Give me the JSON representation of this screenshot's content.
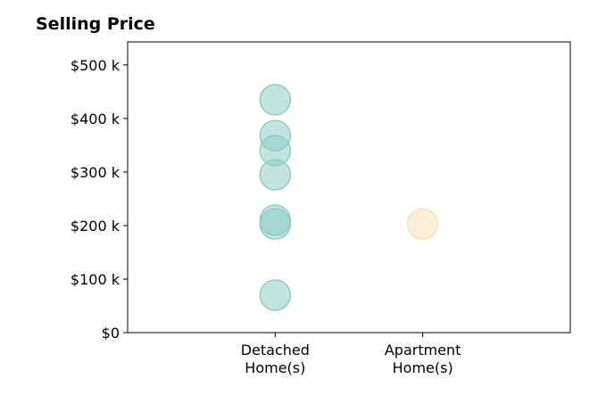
{
  "chart_data": {
    "type": "scatter",
    "title": "Selling Price",
    "xlabel": "",
    "ylabel": "",
    "categories": [
      {
        "line1": "Detached",
        "line2": "Home(s)"
      },
      {
        "line1": "Apartment",
        "line2": "Home(s)"
      }
    ],
    "y_ticks": [
      {
        "value": 0,
        "label": "$0"
      },
      {
        "value": 100,
        "label": "$100 k"
      },
      {
        "value": 200,
        "label": "$200 k"
      },
      {
        "value": 300,
        "label": "$300 k"
      },
      {
        "value": 400,
        "label": "$400 k"
      },
      {
        "value": 500,
        "label": "$500 k"
      }
    ],
    "ylim": [
      0,
      543
    ],
    "x_range": [
      -1,
      2
    ],
    "grid": false,
    "series": [
      {
        "category_index": 0,
        "color": "#8ecdc5",
        "values": [
          435,
          368,
          340,
          295,
          210,
          203,
          70
        ]
      },
      {
        "category_index": 1,
        "color": "#f5e2b8",
        "values": [
          203
        ]
      }
    ]
  }
}
